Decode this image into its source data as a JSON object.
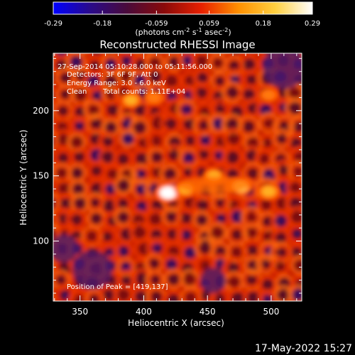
{
  "colorbar": {
    "ticks": [
      "-0.29",
      "-0.18",
      "-0.059",
      "0.059",
      "0.18",
      "0.29"
    ],
    "range": [
      -0.29,
      0.29
    ],
    "units_main": "(photons cm",
    "units_sup1": "-2",
    "units_mid": " s",
    "units_sup2": "-1",
    "units_end": " asec",
    "units_sup3": "-2",
    "units_close": ")",
    "stops": [
      "#0000ff",
      "#2a0a8a",
      "#4a0a3a",
      "#8a0a0a",
      "#e82000",
      "#ff9000",
      "#ffd040",
      "#ffffff"
    ]
  },
  "chart_data": {
    "type": "heatmap",
    "title": "Reconstructed RHESSI Image",
    "xlabel": "Heliocentric X (arcsec)",
    "ylabel": "Heliocentric Y (arcsec)",
    "xlim": [
      329,
      524
    ],
    "ylim": [
      54,
      244
    ],
    "x_ticks": [
      350,
      400,
      450,
      500
    ],
    "y_ticks": [
      100,
      150,
      200
    ],
    "peak": {
      "x": 419,
      "y": 137
    },
    "sources": [
      {
        "x": 419,
        "y": 137,
        "value": 0.29
      },
      {
        "x": 433,
        "y": 140,
        "value": 0.2
      },
      {
        "x": 476,
        "y": 142,
        "value": 0.24
      },
      {
        "x": 498,
        "y": 138,
        "value": 0.2
      },
      {
        "x": 455,
        "y": 150,
        "value": 0.17
      },
      {
        "x": 390,
        "y": 208,
        "value": 0.16
      },
      {
        "x": 408,
        "y": 210,
        "value": 0.13
      },
      {
        "x": 498,
        "y": 212,
        "value": 0.13
      }
    ],
    "annotations": {
      "time": "27-Sep-2014 05:10:28.000 to 05:11:56.000",
      "detectors": "Detectors: 3F 6F 9F, Att 0",
      "energy": "Energy Range: 3.0 - 6.0 keV",
      "method": "Clean",
      "counts": "Total counts: 1.11E+04",
      "peak_label": "Position of Peak = [419,137]"
    }
  },
  "footer": {
    "date": "17-May-2022 15:27"
  }
}
